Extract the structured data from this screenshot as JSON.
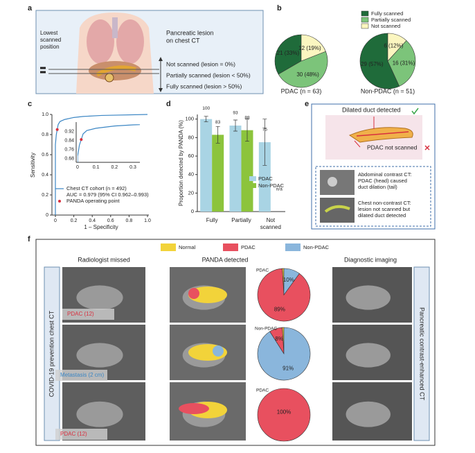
{
  "panel_labels": [
    "a",
    "b",
    "c",
    "d",
    "e",
    "f"
  ],
  "panel_a": {
    "left_text": [
      "Lowest",
      "scanned",
      "position"
    ],
    "title": [
      "Pancreatic lesion",
      "on chest CT"
    ],
    "levels": [
      "Not scanned (lesion = 0%)",
      "Partially scanned (lesion < 50%)",
      "Fully scanned (lesion > 50%)"
    ]
  },
  "panel_e": {
    "top": "Dilated duct detected",
    "bottom": "PDAC not scanned",
    "case1": [
      "Abdominal contrast CT:",
      "PDAC (head) caused",
      "duct dilation (tail)"
    ],
    "case2": [
      "Chest non-contrast CT:",
      "lesion not scanned but",
      "dilated duct detected"
    ]
  },
  "panel_f": {
    "col_titles": [
      "Radiologist missed",
      "PANDA detected",
      "Diagnostic imaging"
    ],
    "left_side": "COVID-19 prevention chest CT",
    "right_side": "Pancreatic contrast-enhanced CT",
    "image_labels": [
      "PDAC (12)",
      "Metastasis (2 cm)",
      "PDAC (12)"
    ]
  },
  "chart_data": [
    {
      "type": "pie",
      "title": "PDAC (n = 63)",
      "categories": [
        "Fully scanned",
        "Partially scanned",
        "Not scanned"
      ],
      "values": [
        21,
        30,
        12
      ],
      "value_labels": [
        "21 (33%)",
        "30 (48%)",
        "12 (19%)"
      ],
      "colors": [
        "#1f6b3a",
        "#7cc47a",
        "#fbf6c0"
      ]
    },
    {
      "type": "pie",
      "title": "Non-PDAC (n = 51)",
      "categories": [
        "Fully scanned",
        "Partially scanned",
        "Not scanned"
      ],
      "values": [
        29,
        16,
        6
      ],
      "value_labels": [
        "29 (57%)",
        "16 (31%)",
        "6 (12%)"
      ],
      "colors": [
        "#1f6b3a",
        "#7cc47a",
        "#fbf6c0"
      ]
    },
    {
      "type": "line",
      "x_label": "1 – Specificity",
      "y_label": "Sensitivity",
      "xlim": [
        0,
        1
      ],
      "ylim": [
        0,
        1
      ],
      "xticks": [
        0,
        0.2,
        0.4,
        0.6,
        0.8,
        {
          "value": 1,
          "label": "1.0"
        }
      ],
      "yticks": [
        0,
        0.2,
        0.4,
        0.6,
        0.8,
        {
          "value": 1,
          "label": "1.0"
        }
      ],
      "series": [
        {
          "name": "Chest CT cohort (n = 492)",
          "note": "AUC = 0.979 (95% CI 0.962–0.993)",
          "color": "#3b86c4",
          "x": [
            0,
            0,
            0.01,
            0.02,
            0.03,
            0.05,
            0.1,
            0.2,
            0.3,
            0.5,
            1
          ],
          "values": [
            0,
            0.7,
            0.8,
            0.85,
            0.9,
            0.93,
            0.95,
            0.97,
            0.98,
            0.99,
            1
          ]
        },
        {
          "name": "PANDA operating point",
          "color": "#d8303f",
          "x": [
            0.02
          ],
          "values": [
            0.85
          ]
        }
      ],
      "inset": {
        "xlim": [
          0,
          0.33
        ],
        "ylim": [
          0.66,
          0.98
        ],
        "xticks": [
          0,
          0.1,
          0.2,
          0.3
        ],
        "yticks": [
          0.68,
          0.76,
          0.84,
          0.92
        ]
      }
    },
    {
      "type": "bar",
      "y_label": "Proportion detected by PANDA (%)",
      "categories": [
        "Fully",
        "Partially",
        "Not scanned"
      ],
      "ylim": [
        0,
        105
      ],
      "yticks": [
        0,
        20,
        40,
        60,
        80,
        100
      ],
      "series": [
        {
          "name": "PDAC",
          "color": "#a9d4e4",
          "values": [
            100,
            93,
            75
          ],
          "errors": [
            3,
            6,
            25
          ],
          "value_labels": [
            "100",
            "93",
            "75"
          ]
        },
        {
          "name": "Non-PDAC",
          "color": "#8cc43c",
          "values": [
            83,
            88,
            null
          ],
          "errors": [
            9,
            12,
            null
          ],
          "value_labels": [
            "83",
            "88",
            "n/a"
          ]
        }
      ]
    },
    {
      "type": "pie",
      "title": "PDAC",
      "categories": [
        "Normal",
        "PDAC",
        "Non-PDAC"
      ],
      "values": [
        1,
        89,
        10
      ],
      "value_labels": [
        null,
        "89%",
        "10%"
      ],
      "colors": [
        "#f2d33a",
        "#e8505f",
        "#8ab6dc"
      ]
    },
    {
      "type": "pie",
      "title": "Non-PDAC",
      "categories": [
        "Normal",
        "PDAC",
        "Non-PDAC"
      ],
      "values": [
        1,
        8,
        91
      ],
      "value_labels": [
        null,
        "8%",
        "91%"
      ],
      "colors": [
        "#f2d33a",
        "#e8505f",
        "#8ab6dc"
      ]
    },
    {
      "type": "pie",
      "title": "PDAC",
      "categories": [
        "Normal",
        "PDAC",
        "Non-PDAC"
      ],
      "values": [
        0,
        100,
        0
      ],
      "value_labels": [
        null,
        "100%",
        null
      ],
      "colors": [
        "#f2d33a",
        "#e8505f",
        "#8ab6dc"
      ]
    }
  ]
}
